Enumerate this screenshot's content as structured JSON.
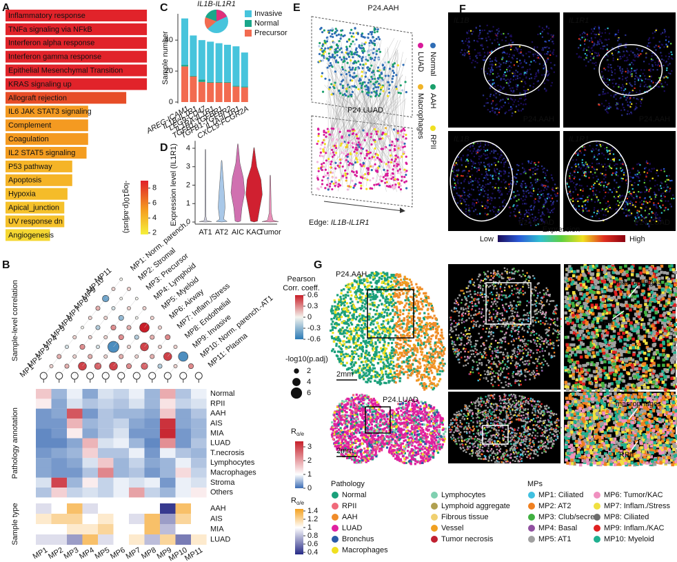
{
  "panel_a": {
    "label": "A",
    "type": "bar",
    "terms": [
      "Inflammatory response",
      "TNFa signaling via NFkB",
      "Interferon alpha response",
      "Interferon gamma response",
      "Epithelial Mesenchymal Transition",
      "KRAS signaling up",
      "Allograft rejection",
      "IL6 JAK STAT3 signaling",
      "Complement",
      "Coagulation",
      "IL2 STAT5 signaling",
      "P53 pathway",
      "Apoptosis",
      "Hypoxia",
      "Apical_junction",
      "UV response dn",
      "Angiogenesis"
    ],
    "values": [
      8.9,
      8.9,
      8.9,
      8.9,
      8.9,
      8.9,
      7.6,
      5.2,
      5.2,
      5.2,
      5.1,
      4.2,
      4.2,
      3.9,
      3.7,
      3.7,
      2.8
    ],
    "xlim": [
      0,
      9.2
    ],
    "colorbar": {
      "title": "-log10(p.adjust)",
      "ticks": [
        2,
        4,
        6,
        8
      ],
      "colorscale": [
        [
          1.8,
          "#f5f03a"
        ],
        [
          5,
          "#f5a020"
        ],
        [
          9,
          "#e0202a"
        ]
      ]
    }
  },
  "panel_b": {
    "label": "B",
    "columns": [
      "MP1",
      "MP2",
      "MP3",
      "MP4",
      "MP5",
      "MP6",
      "MP7",
      "MP8",
      "MP9",
      "MP10",
      "MP11"
    ],
    "correlation": {
      "title": "Sample-level correlation",
      "right_labels": [
        "MP1: Norm. parench.",
        "MP2: Stromal",
        "MP3: Precursor",
        "MP4: Lymphoid",
        "MP5: Myeloid",
        "MP6: Airway",
        "MP7: Inflam./Stress",
        "MP8: Endothelial",
        "MP9: Invasive",
        "MP10: Norm. parench.-AT1",
        "MP11: Plasma"
      ],
      "r": [
        [
          0.1,
          0.2,
          -0.1,
          0.1,
          0.0,
          0.1,
          0.2,
          -0.4,
          0.1,
          0.0
        ],
        [
          0.2,
          0.1,
          0.3,
          0.1,
          -0.2,
          0.1,
          -0.1,
          0.0,
          0.1
        ],
        [
          0.5,
          0.2,
          -0.1,
          0.1,
          0.3,
          -0.3,
          0.1,
          0.0
        ],
        [
          0.4,
          0.1,
          -0.5,
          0.3,
          0.2,
          0.0,
          0.1
        ],
        [
          0.5,
          0.2,
          0.1,
          -0.2,
          0.6,
          0.1
        ],
        [
          0.3,
          0.1,
          0.5,
          0.2,
          0.1
        ],
        [
          0.4,
          0.2,
          0.1,
          0.3
        ],
        [
          -0.2,
          0.5,
          0.1
        ],
        [
          0.1,
          -0.5
        ],
        [
          0.3
        ]
      ],
      "padj": [
        [
          1,
          1.5,
          1,
          1,
          0.5,
          1,
          1.5,
          3,
          1,
          0.5
        ],
        [
          1.5,
          1,
          2,
          1,
          1.5,
          1,
          1,
          0.5,
          1
        ],
        [
          4,
          1.5,
          1,
          1,
          2,
          2,
          1,
          0.5
        ],
        [
          3,
          1,
          6,
          2,
          1.5,
          0.5,
          1
        ],
        [
          4,
          1.5,
          1,
          1.5,
          5,
          1
        ],
        [
          2,
          1,
          4,
          1.5,
          1
        ],
        [
          3,
          1.5,
          1,
          2
        ],
        [
          1.5,
          4,
          1
        ],
        [
          1,
          5
        ],
        [
          2
        ]
      ]
    },
    "pearson_legend": {
      "title_lines": [
        "Pearson",
        "Corr. coeff."
      ],
      "ticks": [
        0.6,
        0.3,
        0,
        -0.3,
        -0.6
      ],
      "colorscale": [
        [
          -0.6,
          "#2b7ab6"
        ],
        [
          0,
          "#f4f4ee"
        ],
        [
          0.6,
          "#c81e28"
        ]
      ]
    },
    "size_legend": {
      "title": "-log10(p.adj)",
      "ticks": [
        2,
        4,
        6
      ]
    },
    "pathology": {
      "title": "Pathology annotation",
      "rows": [
        "Normal",
        "RPII",
        "AAH",
        "AIS",
        "MIA",
        "LUAD",
        "T.necrosis",
        "Lymphocytes",
        "Macrophages",
        "Stroma",
        "Others"
      ],
      "values": [
        [
          1.6,
          0.5,
          0.9,
          0.4,
          0.8,
          0.7,
          0.9,
          0.5,
          1.9,
          0.6,
          0.9
        ],
        [
          1.2,
          0.4,
          0.8,
          0.6,
          0.7,
          0.6,
          0.8,
          0.5,
          1.3,
          0.7,
          0.8
        ],
        [
          0.3,
          0.4,
          2.8,
          0.3,
          0.6,
          0.5,
          0.5,
          0.4,
          1.6,
          0.4,
          0.6
        ],
        [
          0.3,
          0.3,
          1.8,
          0.5,
          0.6,
          0.7,
          0.4,
          0.3,
          3.2,
          0.4,
          0.5
        ],
        [
          0.2,
          0.3,
          1.2,
          0.4,
          0.6,
          0.8,
          0.3,
          0.3,
          3.3,
          0.3,
          0.5
        ],
        [
          0.2,
          0.2,
          0.4,
          1.8,
          0.8,
          0.9,
          0.5,
          0.2,
          2.2,
          0.3,
          0.6
        ],
        [
          0.3,
          0.4,
          0.5,
          1.5,
          0.6,
          0.6,
          0.9,
          0.3,
          0.9,
          0.6,
          0.5
        ],
        [
          0.4,
          0.3,
          0.4,
          0.8,
          1.6,
          0.5,
          0.7,
          0.4,
          0.5,
          0.9,
          0.6
        ],
        [
          0.4,
          0.3,
          0.3,
          0.6,
          2.3,
          0.5,
          0.6,
          0.3,
          0.5,
          1.4,
          0.7
        ],
        [
          0.8,
          3.0,
          0.5,
          1.2,
          0.7,
          0.9,
          0.8,
          0.9,
          0.3,
          0.9,
          0.8
        ],
        [
          0.6,
          1.5,
          0.7,
          0.8,
          0.7,
          0.9,
          2.0,
          0.7,
          0.5,
          0.9,
          1.2
        ]
      ]
    },
    "roe_legend": {
      "symbol": "R",
      "subscript": "o/e",
      "ticks": [
        3,
        2,
        1,
        0
      ],
      "colorscale": [
        [
          0,
          "#3b6cb4"
        ],
        [
          1,
          "#ffffff"
        ],
        [
          3.4,
          "#c61f2a"
        ]
      ]
    },
    "sample_type": {
      "title": "Sample type",
      "rows": [
        "AAH",
        "AIS",
        "MIA",
        "LUAD"
      ],
      "values": [
        [
          0.9,
          1.0,
          1.3,
          0.9,
          1.0,
          1.0,
          1.0,
          1.0,
          0.4,
          1.3,
          1.0
        ],
        [
          1.1,
          1.2,
          1.2,
          1.0,
          1.1,
          1.0,
          0.9,
          1.3,
          0.7,
          1.2,
          1.0
        ],
        [
          1.0,
          1.0,
          1.1,
          1.1,
          1.2,
          1.0,
          1.0,
          1.3,
          0.8,
          1.0,
          1.0
        ],
        [
          0.9,
          0.9,
          0.7,
          1.3,
          0.9,
          1.0,
          1.1,
          0.8,
          1.2,
          0.6,
          1.1
        ]
      ]
    },
    "roe_legend2": {
      "symbol": "R",
      "subscript": "o/e",
      "ticks": [
        1.4,
        1.2,
        1,
        0.8,
        0.6,
        0.4
      ],
      "colorscale": [
        [
          0.35,
          "#262a86"
        ],
        [
          1,
          "#ffffff"
        ],
        [
          1.45,
          "#f4a11e"
        ]
      ]
    }
  },
  "panel_c": {
    "label": "C",
    "type": "bar",
    "stacked": true,
    "inset_title": "IL1B-IL1R1",
    "categories": [
      "AREG-ICAM1",
      "IL1B-IL1R1",
      "LEG9-CD47",
      "IL1RA-IL1R1",
      "TGFB1-TGFBR1",
      "TGFB1-TGFBR2",
      "IL1A-IL1R1",
      "CXCL9-FCGR2A"
    ],
    "ylabel": "Sample number",
    "ylim": [
      0,
      57
    ],
    "yticks": [
      0,
      20,
      40
    ],
    "series": [
      {
        "name": "Precursor",
        "color": "#f26b50",
        "values": [
          23,
          16.5,
          13,
          12.5,
          12.5,
          12.5,
          10,
          9.5
        ]
      },
      {
        "name": "Normal",
        "color": "#1aa68a",
        "values": [
          1,
          0.5,
          1.5,
          0.5,
          0.5,
          0.5,
          0.5,
          0.5
        ]
      },
      {
        "name": "Invasive",
        "color": "#47c4dc",
        "values": [
          30,
          26,
          25.5,
          26,
          25,
          24,
          25.5,
          22
        ]
      }
    ]
  },
  "panel_d": {
    "label": "D",
    "type": "violin",
    "ylabel": "Expression level (IL1R1)",
    "ylim": [
      0,
      4.4
    ],
    "yticks": [
      0,
      1,
      2,
      3,
      4
    ],
    "categories": [
      "AT1",
      "AT2",
      "AIC",
      "KAC",
      "Tumor"
    ],
    "colors": [
      "#c8c8d8",
      "#a9c8e8",
      "#d070b0",
      "#d02030",
      "#e890b8"
    ]
  },
  "panel_e": {
    "label": "E",
    "top_title": "P24.AAH",
    "bottom_title": "P24.LUAD",
    "legend": [
      {
        "name": "Normal",
        "color": "#2f6db5"
      },
      {
        "name": "LUAD",
        "color": "#d81b9a"
      },
      {
        "name": "AAH",
        "color": "#1a9f6b"
      },
      {
        "name": "Macrophages",
        "color": "#f0b429"
      },
      {
        "name": "RPII",
        "color": "#f0e020"
      }
    ],
    "edge_prefix": "Edge:",
    "edge_gene": "IL1B-IL1R1"
  },
  "panel_f": {
    "label": "F",
    "tiles": [
      {
        "gene": "IL1B",
        "sample": "P24.AAH"
      },
      {
        "gene": "IL1R1",
        "sample": "P24.AAH"
      },
      {
        "gene": "IL1B",
        "sample": "P24.LUAD"
      },
      {
        "gene": "IL1R1",
        "sample": "P24.LUAD"
      }
    ],
    "colorbar": {
      "title": "Expression",
      "low": "Low",
      "high": "High",
      "colors": [
        "#1b0c5a",
        "#2a5ad8",
        "#30c0d0",
        "#60d040",
        "#f0e020",
        "#e03020",
        "#8a0010"
      ]
    }
  },
  "panel_g": {
    "label": "G",
    "samples": [
      "P24.AAH",
      "P24.LUAD"
    ],
    "scale": "2mm",
    "callouts": [
      "macrophages",
      "RPII"
    ],
    "pathology_legend": {
      "title": "Pathology",
      "items": [
        {
          "name": "Normal",
          "color": "#1aa07a"
        },
        {
          "name": "RPII",
          "color": "#f06a7a"
        },
        {
          "name": "AAH",
          "color": "#f08c2a"
        },
        {
          "name": "LUAD",
          "color": "#e020a0"
        },
        {
          "name": "Bronchus",
          "color": "#2a5aa8"
        },
        {
          "name": "Macrophages",
          "color": "#f0e020"
        },
        {
          "name": "Lymphocytes",
          "color": "#80d0b0"
        },
        {
          "name": "Lymphoid aggregate",
          "color": "#b0a050"
        },
        {
          "name": "Fibrous tissue",
          "color": "#f0d070"
        },
        {
          "name": "Vessel",
          "color": "#f0a020"
        },
        {
          "name": "Tumor necrosis",
          "color": "#c02030"
        }
      ]
    },
    "mp_legend": {
      "title": "MPs",
      "items": [
        {
          "name": "MP1: Ciliated",
          "color": "#40c0e0"
        },
        {
          "name": "MP2: AT2",
          "color": "#f08020"
        },
        {
          "name": "MP3: Club/secre.",
          "color": "#40b040"
        },
        {
          "name": "MP4: Basal",
          "color": "#9050a0"
        },
        {
          "name": "MP5: AT1",
          "color": "#a0a0a0"
        },
        {
          "name": "MP6: Tumor/KAC",
          "color": "#f090c0"
        },
        {
          "name": "MP7: Inflam./Stress",
          "color": "#f0e040"
        },
        {
          "name": "MP8: Ciliated",
          "color": "#707070"
        },
        {
          "name": "MP9: Inflam./KAC",
          "color": "#e02020"
        },
        {
          "name": "MP10: Myeloid",
          "color": "#20b090"
        }
      ]
    }
  }
}
